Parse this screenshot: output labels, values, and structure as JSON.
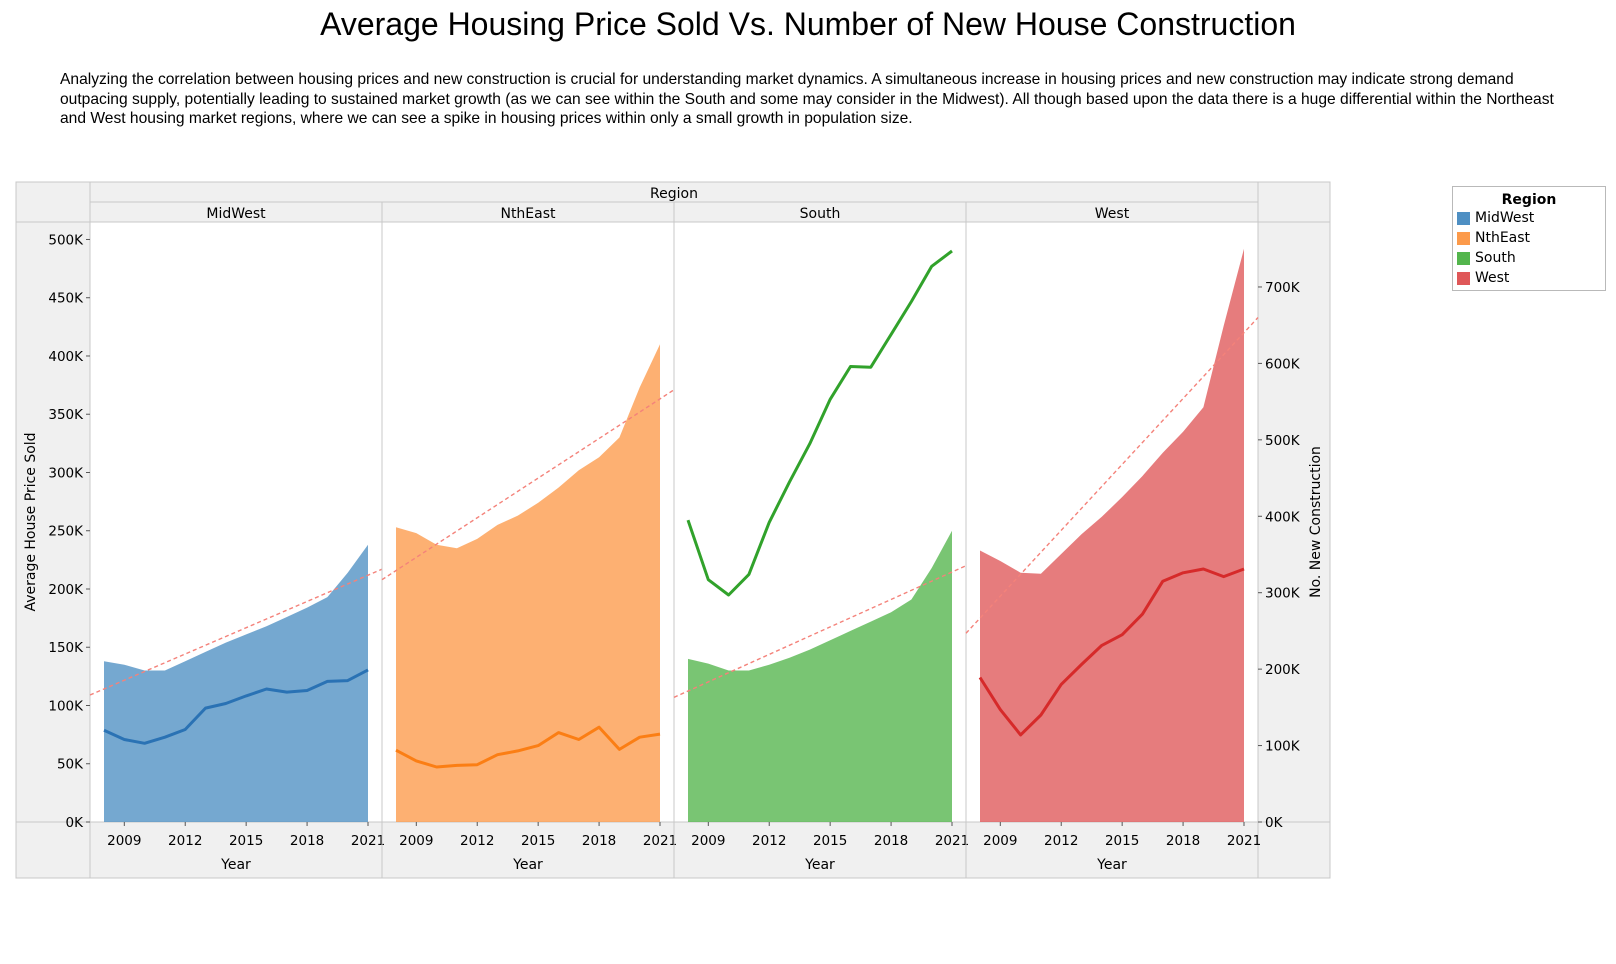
{
  "title": "Average Housing Price Sold Vs. Number of New House Construction",
  "description": "Analyzing the correlation between housing prices and new construction is crucial for understanding market dynamics. A simultaneous increase in housing prices and new construction may indicate strong demand outpacing supply, potentially leading to sustained market growth (as we can see within the South and some may consider in the Midwest). All though based upon the data there is a huge differential within the Northeast and West housing market regions, where we can see a spike in housing prices within only a small growth in population size.",
  "legend": {
    "title": "Region",
    "items": [
      {
        "label": "MidWest",
        "color": "#4e8fc3"
      },
      {
        "label": "NthEast",
        "color": "#fc9a4a"
      },
      {
        "label": "South",
        "color": "#53b54c"
      },
      {
        "label": "West",
        "color": "#df5758"
      }
    ]
  },
  "chart_data": {
    "type": "area",
    "title": "Average Housing Price Sold Vs. Number of New House Construction",
    "facet_header": "Region",
    "xlabel": "Year",
    "ylabel": "Average House Price Sold",
    "y2label": "No. New Construction",
    "x": [
      2008,
      2009,
      2010,
      2011,
      2012,
      2013,
      2014,
      2015,
      2016,
      2017,
      2018,
      2019,
      2020,
      2021
    ],
    "x_ticks": [
      "2009",
      "2012",
      "2015",
      "2018",
      "2021"
    ],
    "y_ticks": [
      "500K",
      "450K",
      "400K",
      "350K",
      "300K",
      "250K",
      "200K",
      "150K",
      "100K",
      "50K",
      "0K"
    ],
    "y2_ticks": [
      "700K",
      "600K",
      "500K",
      "400K",
      "300K",
      "200K",
      "100K",
      "0K"
    ],
    "ylim": [
      0,
      515000
    ],
    "y2lim": [
      0,
      785000
    ],
    "trend_line_color": "#f4827a",
    "panels": [
      {
        "region": "MidWest",
        "area_color": "#4e8fc3",
        "line_color": "#2a72b4",
        "price": [
          138000,
          135000,
          130000,
          130000,
          138000,
          146000,
          154000,
          161000,
          168000,
          176000,
          184000,
          193000,
          214000,
          238000
        ],
        "construction": [
          120000,
          108000,
          103000,
          111000,
          121000,
          149000,
          155000,
          165000,
          174000,
          170000,
          172000,
          184000,
          185000,
          199000
        ],
        "trend_start": 109000,
        "trend_end": 217000
      },
      {
        "region": "NthEast",
        "area_color": "#fc9a4a",
        "line_color": "#fb7e14",
        "price": [
          253000,
          248000,
          238000,
          235000,
          243000,
          255000,
          263000,
          274000,
          287000,
          302000,
          313000,
          330000,
          373000,
          410000
        ],
        "construction": [
          94000,
          80000,
          72000,
          74000,
          75000,
          88000,
          93000,
          100000,
          117000,
          108000,
          124000,
          95000,
          111000,
          115000
        ],
        "trend_start": 208000,
        "trend_end": 371000
      },
      {
        "region": "South",
        "area_color": "#53b54c",
        "line_color": "#31a22b",
        "price": [
          140000,
          136000,
          130000,
          130000,
          135000,
          141000,
          148000,
          156000,
          164000,
          172000,
          180000,
          191000,
          218000,
          250000
        ],
        "construction": [
          395000,
          317000,
          297000,
          324000,
          392000,
          445000,
          495000,
          553000,
          596000,
          595000,
          638000,
          681000,
          727000,
          747000
        ],
        "trend_start": 107000,
        "trend_end": 220000
      },
      {
        "region": "West",
        "area_color": "#df5758",
        "line_color": "#d62a2a",
        "price": [
          233000,
          224000,
          214000,
          213000,
          230000,
          247000,
          262000,
          279000,
          297000,
          317000,
          335000,
          356000,
          426000,
          492000
        ],
        "construction": [
          189000,
          147000,
          114000,
          140000,
          180000,
          206000,
          231000,
          245000,
          272000,
          315000,
          326000,
          331000,
          321000,
          331000
        ],
        "trend_start": 162000,
        "trend_end": 433000
      }
    ]
  }
}
